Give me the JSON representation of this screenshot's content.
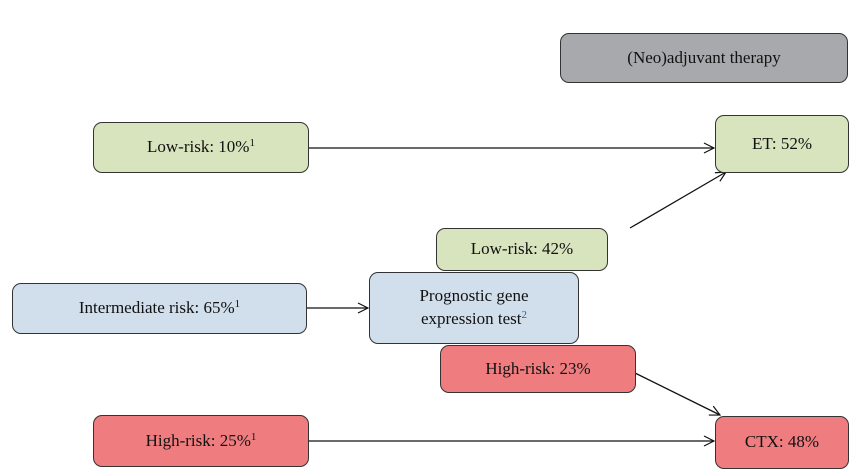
{
  "header": {
    "title": "(Neo)adjuvant therapy"
  },
  "nodes": [
    {
      "label": "Low-risk: 10%",
      "sup": "1"
    },
    {
      "label": "ET: 52%"
    },
    {
      "label": "Low-risk: 42%"
    },
    {
      "label": "Intermediate risk: 65%",
      "sup": "1"
    },
    {
      "label": "Prognostic gene expression test",
      "sup": "2"
    },
    {
      "label": "High-risk: 23%"
    },
    {
      "label": "High-risk: 25%",
      "sup": "1"
    },
    {
      "label": "CTX: 48%"
    }
  ]
}
